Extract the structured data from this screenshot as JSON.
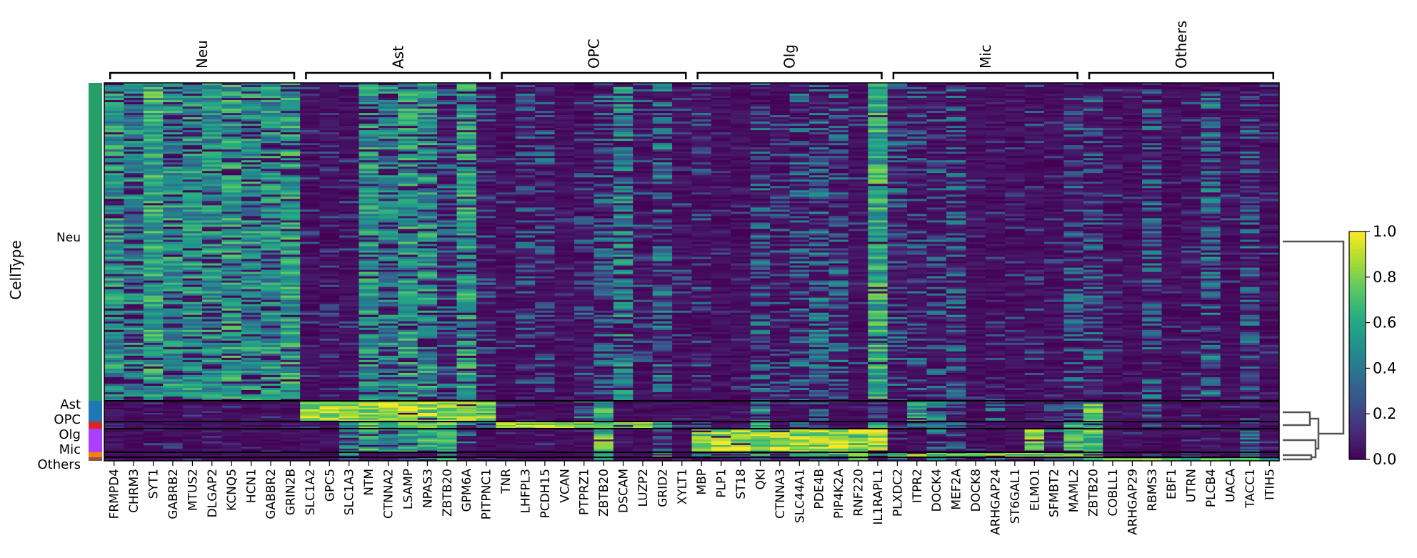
{
  "chart_data": {
    "type": "heatmap",
    "ylabel": "CellType",
    "colormap": "viridis",
    "colorbar": {
      "range": [
        0.0,
        1.0
      ],
      "ticks": [
        "0.0",
        "0.2",
        "0.4",
        "0.6",
        "0.8",
        "1.0"
      ]
    },
    "cell_types": [
      {
        "name": "Neu",
        "color": "#279e68"
      },
      {
        "name": "Ast",
        "color": "#1f77b4"
      },
      {
        "name": "OPC",
        "color": "#d62728"
      },
      {
        "name": "Olg",
        "color": "#aa40fc"
      },
      {
        "name": "Mic",
        "color": "#ff7f0e"
      },
      {
        "name": "Others",
        "color": "#8c564b"
      }
    ],
    "gene_groups": [
      {
        "name": "Neu",
        "genes": [
          "FRMPD4",
          "CHRM3",
          "SYT1",
          "GABRB2",
          "MTUS2",
          "DLGAP2",
          "KCNQ5",
          "HCN1",
          "GABBR2",
          "GRIN2B"
        ]
      },
      {
        "name": "Ast",
        "genes": [
          "SLC1A2",
          "GPC5",
          "SLC1A3",
          "NTM",
          "CTNNA2",
          "LSAMP",
          "NPAS3",
          "ZBTB20",
          "GPM6A",
          "PITPNC1"
        ]
      },
      {
        "name": "OPC",
        "genes": [
          "TNR",
          "LHFPL3",
          "PCDH15",
          "VCAN",
          "PTPRZ1",
          "ZBTB20",
          "DSCAM",
          "LUZP2",
          "GRID2",
          "XYLT1"
        ]
      },
      {
        "name": "Olg",
        "genes": [
          "MBP",
          "PLP1",
          "ST18",
          "QKI",
          "CTNNA3",
          "SLC44A1",
          "PDE4B",
          "PIP4K2A",
          "RNF220",
          "IL1RAPL1"
        ]
      },
      {
        "name": "Mic",
        "genes": [
          "PLXDC2",
          "ITPR2",
          "DOCK4",
          "MEF2A",
          "DOCK8",
          "ARHGAP24",
          "ST6GAL1",
          "ELMO1",
          "SFMBT2",
          "MAML2"
        ]
      },
      {
        "name": "Others",
        "genes": [
          "ZBTB20",
          "COBLL1",
          "ARHGAP29",
          "RBMS3",
          "EBF1",
          "UTRN",
          "PLCB4",
          "UACA",
          "TACC1",
          "ITIH5"
        ]
      }
    ],
    "mean_expression": {
      "Neu": [
        0.5,
        0.45,
        0.6,
        0.5,
        0.5,
        0.5,
        0.55,
        0.5,
        0.5,
        0.55,
        0.1,
        0.1,
        0.1,
        0.5,
        0.45,
        0.55,
        0.5,
        0.3,
        0.55,
        0.2,
        0.1,
        0.25,
        0.25,
        0.05,
        0.2,
        0.3,
        0.45,
        0.2,
        0.35,
        0.15,
        0.2,
        0.05,
        0.05,
        0.3,
        0.2,
        0.3,
        0.35,
        0.3,
        0.15,
        0.6,
        0.3,
        0.25,
        0.25,
        0.3,
        0.05,
        0.1,
        0.1,
        0.15,
        0.1,
        0.3,
        0.3,
        0.15,
        0.05,
        0.3,
        0.05,
        0.15,
        0.35,
        0.1,
        0.3,
        0.1
      ],
      "Ast": [
        0.05,
        0.05,
        0.1,
        0.05,
        0.05,
        0.05,
        0.05,
        0.05,
        0.05,
        0.1,
        0.85,
        0.9,
        0.85,
        0.85,
        0.9,
        0.9,
        0.85,
        0.8,
        0.85,
        0.75,
        0.05,
        0.05,
        0.05,
        0.05,
        0.4,
        0.6,
        0.05,
        0.05,
        0.05,
        0.05,
        0.05,
        0.05,
        0.05,
        0.5,
        0.1,
        0.1,
        0.4,
        0.1,
        0.1,
        0.3,
        0.1,
        0.5,
        0.5,
        0.2,
        0.05,
        0.3,
        0.05,
        0.1,
        0.3,
        0.4,
        0.7,
        0.05,
        0.05,
        0.3,
        0.05,
        0.1,
        0.05,
        0.05,
        0.2,
        0.05
      ],
      "OPC": [
        0.1,
        0.05,
        0.15,
        0.1,
        0.05,
        0.1,
        0.1,
        0.1,
        0.1,
        0.3,
        0.3,
        0.1,
        0.4,
        0.7,
        0.6,
        0.8,
        0.7,
        0.7,
        0.5,
        0.4,
        0.85,
        0.85,
        0.8,
        0.85,
        0.8,
        0.8,
        0.8,
        0.85,
        0.5,
        0.3,
        0.2,
        0.1,
        0.1,
        0.5,
        0.2,
        0.3,
        0.3,
        0.1,
        0.1,
        0.5,
        0.2,
        0.3,
        0.3,
        0.3,
        0.05,
        0.1,
        0.1,
        0.2,
        0.1,
        0.6,
        0.7,
        0.05,
        0.05,
        0.4,
        0.05,
        0.2,
        0.2,
        0.05,
        0.3,
        0.05
      ],
      "Olg": [
        0.05,
        0.05,
        0.1,
        0.1,
        0.05,
        0.05,
        0.05,
        0.05,
        0.05,
        0.05,
        0.05,
        0.05,
        0.4,
        0.6,
        0.5,
        0.5,
        0.6,
        0.7,
        0.3,
        0.05,
        0.05,
        0.05,
        0.05,
        0.05,
        0.05,
        0.7,
        0.05,
        0.05,
        0.3,
        0.05,
        0.8,
        0.85,
        0.85,
        0.75,
        0.8,
        0.85,
        0.85,
        0.85,
        0.8,
        0.9,
        0.05,
        0.05,
        0.4,
        0.3,
        0.05,
        0.05,
        0.05,
        0.7,
        0.3,
        0.6,
        0.7,
        0.05,
        0.05,
        0.05,
        0.05,
        0.05,
        0.05,
        0.05,
        0.3,
        0.05
      ],
      "Mic": [
        0.05,
        0.05,
        0.1,
        0.05,
        0.05,
        0.05,
        0.05,
        0.05,
        0.05,
        0.05,
        0.1,
        0.05,
        0.5,
        0.2,
        0.2,
        0.3,
        0.2,
        0.4,
        0.1,
        0.3,
        0.05,
        0.05,
        0.05,
        0.05,
        0.1,
        0.5,
        0.1,
        0.05,
        0.6,
        0.1,
        0.3,
        0.4,
        0.3,
        0.6,
        0.4,
        0.5,
        0.6,
        0.6,
        0.7,
        0.5,
        0.8,
        0.7,
        0.8,
        0.7,
        0.8,
        0.8,
        0.8,
        0.8,
        0.85,
        0.7,
        0.6,
        0.1,
        0.05,
        0.1,
        0.05,
        0.3,
        0.1,
        0.1,
        0.4,
        0.05
      ],
      "Others": [
        0.05,
        0.05,
        0.05,
        0.05,
        0.05,
        0.05,
        0.1,
        0.2,
        0.1,
        0.05,
        0.1,
        0.05,
        0.4,
        0.2,
        0.1,
        0.3,
        0.5,
        0.7,
        0.1,
        0.1,
        0.05,
        0.05,
        0.05,
        0.05,
        0.05,
        0.6,
        0.05,
        0.05,
        0.1,
        0.2,
        0.1,
        0.05,
        0.05,
        0.3,
        0.2,
        0.2,
        0.3,
        0.2,
        0.7,
        0.2,
        0.3,
        0.3,
        0.3,
        0.3,
        0.2,
        0.3,
        0.4,
        0.3,
        0.2,
        0.4,
        0.6,
        0.7,
        0.75,
        0.8,
        0.75,
        0.5,
        0.7,
        0.6,
        0.6,
        0.5
      ]
    },
    "dendrogram": "((Ast,OPC),(Olg,(Mic,Others))),Neu"
  }
}
